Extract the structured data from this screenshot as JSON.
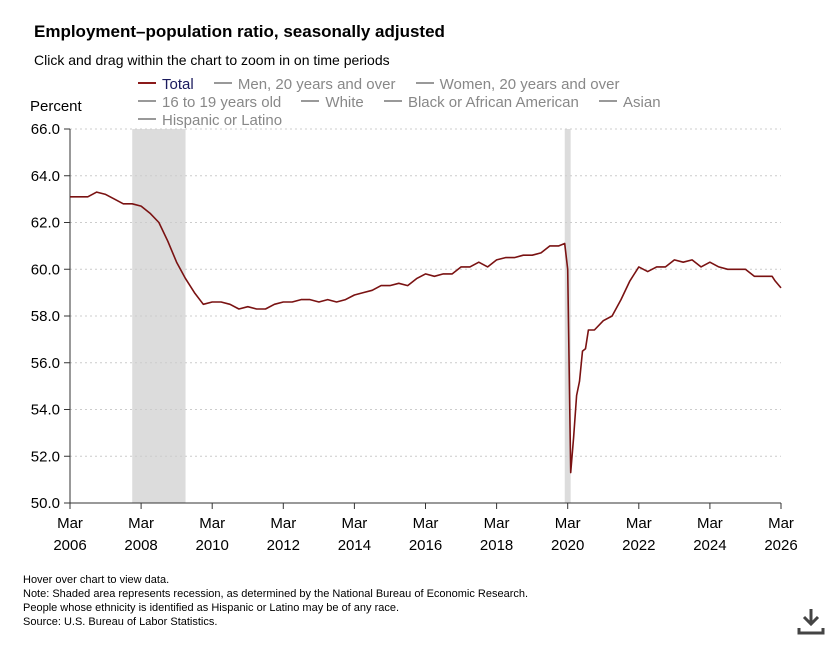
{
  "title": "Employment–population ratio, seasonally adjusted",
  "subtitle": "Click and drag within the chart to zoom in on time periods",
  "legend": [
    {
      "label": "Total",
      "active": true
    },
    {
      "label": "Men, 20 years and over",
      "active": false
    },
    {
      "label": "Women, 20 years and over",
      "active": false
    },
    {
      "label": "16 to 19 years old",
      "active": false
    },
    {
      "label": "White",
      "active": false
    },
    {
      "label": "Black or African American",
      "active": false
    },
    {
      "label": "Asian",
      "active": false
    },
    {
      "label": "Hispanic or Latino",
      "active": false
    }
  ],
  "notes": {
    "hover": "Hover over chart to view data.",
    "recession": "Note: Shaded area represents recession, as determined by the National Bureau of Economic Research.",
    "ethnicity": "People whose ethnicity is identified as Hispanic or Latino may be of any race.",
    "source": "Source: U.S. Bureau of Labor Statistics."
  },
  "colors": {
    "line": "#7a1212",
    "recession": "#dcdcdc",
    "grid": "#cccccc",
    "legend_active": "#1b1b5e",
    "legend_inactive": "#888888"
  },
  "icons": {
    "download": "download-icon"
  },
  "chart_data": {
    "type": "line",
    "ylabel": "Percent",
    "ylim": [
      50.0,
      66.0
    ],
    "yticks": [
      "50.0",
      "52.0",
      "54.0",
      "56.0",
      "58.0",
      "60.0",
      "62.0",
      "64.0",
      "66.0"
    ],
    "xlim": [
      "2006-03",
      "2026-03"
    ],
    "xticks": [
      {
        "month": "Mar",
        "year": "2006"
      },
      {
        "month": "Mar",
        "year": "2008"
      },
      {
        "month": "Mar",
        "year": "2010"
      },
      {
        "month": "Mar",
        "year": "2012"
      },
      {
        "month": "Mar",
        "year": "2014"
      },
      {
        "month": "Mar",
        "year": "2016"
      },
      {
        "month": "Mar",
        "year": "2018"
      },
      {
        "month": "Mar",
        "year": "2020"
      },
      {
        "month": "Mar",
        "year": "2022"
      },
      {
        "month": "Mar",
        "year": "2024"
      },
      {
        "month": "Mar",
        "year": "2026"
      }
    ],
    "grid": true,
    "recessions": [
      [
        "2007-12",
        "2009-06"
      ],
      [
        "2020-02",
        "2020-04"
      ]
    ],
    "series": [
      {
        "name": "Total",
        "points": [
          [
            "2006-03",
            63.1
          ],
          [
            "2006-06",
            63.1
          ],
          [
            "2006-09",
            63.1
          ],
          [
            "2006-12",
            63.3
          ],
          [
            "2007-03",
            63.2
          ],
          [
            "2007-06",
            63.0
          ],
          [
            "2007-09",
            62.8
          ],
          [
            "2007-12",
            62.8
          ],
          [
            "2008-03",
            62.7
          ],
          [
            "2008-06",
            62.4
          ],
          [
            "2008-09",
            62.0
          ],
          [
            "2008-12",
            61.2
          ],
          [
            "2009-03",
            60.3
          ],
          [
            "2009-06",
            59.6
          ],
          [
            "2009-09",
            59.0
          ],
          [
            "2009-12",
            58.5
          ],
          [
            "2010-03",
            58.6
          ],
          [
            "2010-06",
            58.6
          ],
          [
            "2010-09",
            58.5
          ],
          [
            "2010-12",
            58.3
          ],
          [
            "2011-03",
            58.4
          ],
          [
            "2011-06",
            58.3
          ],
          [
            "2011-09",
            58.3
          ],
          [
            "2011-12",
            58.5
          ],
          [
            "2012-03",
            58.6
          ],
          [
            "2012-06",
            58.6
          ],
          [
            "2012-09",
            58.7
          ],
          [
            "2012-12",
            58.7
          ],
          [
            "2013-03",
            58.6
          ],
          [
            "2013-06",
            58.7
          ],
          [
            "2013-09",
            58.6
          ],
          [
            "2013-12",
            58.7
          ],
          [
            "2014-03",
            58.9
          ],
          [
            "2014-06",
            59.0
          ],
          [
            "2014-09",
            59.1
          ],
          [
            "2014-12",
            59.3
          ],
          [
            "2015-03",
            59.3
          ],
          [
            "2015-06",
            59.4
          ],
          [
            "2015-09",
            59.3
          ],
          [
            "2015-12",
            59.6
          ],
          [
            "2016-03",
            59.8
          ],
          [
            "2016-06",
            59.7
          ],
          [
            "2016-09",
            59.8
          ],
          [
            "2016-12",
            59.8
          ],
          [
            "2017-03",
            60.1
          ],
          [
            "2017-06",
            60.1
          ],
          [
            "2017-09",
            60.3
          ],
          [
            "2017-12",
            60.1
          ],
          [
            "2018-03",
            60.4
          ],
          [
            "2018-06",
            60.5
          ],
          [
            "2018-09",
            60.5
          ],
          [
            "2018-12",
            60.6
          ],
          [
            "2019-03",
            60.6
          ],
          [
            "2019-06",
            60.7
          ],
          [
            "2019-09",
            61.0
          ],
          [
            "2019-12",
            61.0
          ],
          [
            "2020-02",
            61.1
          ],
          [
            "2020-03",
            60.0
          ],
          [
            "2020-04",
            51.3
          ],
          [
            "2020-05",
            52.8
          ],
          [
            "2020-06",
            54.6
          ],
          [
            "2020-07",
            55.2
          ],
          [
            "2020-08",
            56.5
          ],
          [
            "2020-09",
            56.6
          ],
          [
            "2020-10",
            57.4
          ],
          [
            "2020-12",
            57.4
          ],
          [
            "2021-03",
            57.8
          ],
          [
            "2021-06",
            58.0
          ],
          [
            "2021-09",
            58.7
          ],
          [
            "2021-12",
            59.5
          ],
          [
            "2022-03",
            60.1
          ],
          [
            "2022-06",
            59.9
          ],
          [
            "2022-09",
            60.1
          ],
          [
            "2022-12",
            60.1
          ],
          [
            "2023-03",
            60.4
          ],
          [
            "2023-06",
            60.3
          ],
          [
            "2023-09",
            60.4
          ],
          [
            "2023-12",
            60.1
          ],
          [
            "2024-03",
            60.3
          ],
          [
            "2024-06",
            60.1
          ],
          [
            "2024-09",
            60.0
          ],
          [
            "2024-12",
            60.0
          ],
          [
            "2025-03",
            60.0
          ],
          [
            "2025-06",
            59.7
          ],
          [
            "2025-09",
            59.7
          ],
          [
            "2025-12",
            59.7
          ],
          [
            "2026-01",
            59.5
          ],
          [
            "2026-03",
            59.2
          ]
        ]
      }
    ]
  }
}
